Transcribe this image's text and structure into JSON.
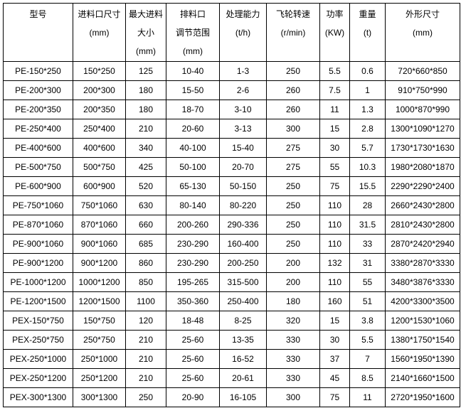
{
  "headers": [
    [
      "型号"
    ],
    [
      "进料口尺寸",
      "(mm)"
    ],
    [
      "最大进料",
      "大小",
      "(mm)"
    ],
    [
      "排料口",
      "调节范围",
      "(mm)"
    ],
    [
      "处理能力",
      "(t/h)"
    ],
    [
      "飞轮转速",
      "(r/min)"
    ],
    [
      "功率",
      "(KW)"
    ],
    [
      "重量",
      "(t)"
    ],
    [
      "外形尺寸",
      "(mm)"
    ]
  ],
  "rows": [
    [
      "PE-150*250",
      "150*250",
      "125",
      "10-40",
      "1-3",
      "250",
      "5.5",
      "0.6",
      "720*660*850"
    ],
    [
      "PE-200*300",
      "200*300",
      "180",
      "15-50",
      "2-6",
      "260",
      "7.5",
      "1",
      "910*750*990"
    ],
    [
      "PE-200*350",
      "200*350",
      "180",
      "18-70",
      "3-10",
      "260",
      "11",
      "1.3",
      "1000*870*990"
    ],
    [
      "PE-250*400",
      "250*400",
      "210",
      "20-60",
      "3-13",
      "300",
      "15",
      "2.8",
      "1300*1090*1270"
    ],
    [
      "PE-400*600",
      "400*600",
      "340",
      "40-100",
      "15-40",
      "275",
      "30",
      "5.7",
      "1730*1730*1630"
    ],
    [
      "PE-500*750",
      "500*750",
      "425",
      "50-100",
      "20-70",
      "275",
      "55",
      "10.3",
      "1980*2080*1870"
    ],
    [
      "PE-600*900",
      "600*900",
      "520",
      "65-130",
      "50-150",
      "250",
      "75",
      "15.5",
      "2290*2290*2400"
    ],
    [
      "PE-750*1060",
      "750*1060",
      "630",
      "80-140",
      "80-220",
      "250",
      "110",
      "28",
      "2660*2430*2800"
    ],
    [
      "PE-870*1060",
      "870*1060",
      "660",
      "200-260",
      "290-336",
      "250",
      "110",
      "31.5",
      "2810*2430*2800"
    ],
    [
      "PE-900*1060",
      "900*1060",
      "685",
      "230-290",
      "160-400",
      "250",
      "110",
      "33",
      "2870*2420*2940"
    ],
    [
      "PE-900*1200",
      "900*1200",
      "860",
      "230-290",
      "200-250",
      "200",
      "132",
      "31",
      "3380*2870*3330"
    ],
    [
      "PE-1000*1200",
      "1000*1200",
      "850",
      "195-265",
      "315-500",
      "200",
      "110",
      "55",
      "3480*3876*3330"
    ],
    [
      "PE-1200*1500",
      "1200*1500",
      "1100",
      "350-360",
      "250-400",
      "180",
      "160",
      "51",
      "4200*3300*3500"
    ],
    [
      "PEX-150*750",
      "150*750",
      "120",
      "18-48",
      "8-25",
      "320",
      "15",
      "3.8",
      "1200*1530*1060"
    ],
    [
      "PEX-250*750",
      "250*750",
      "210",
      "25-60",
      "13-35",
      "330",
      "30",
      "5.5",
      "1380*1750*1540"
    ],
    [
      "PEX-250*1000",
      "250*1000",
      "210",
      "25-60",
      "16-52",
      "330",
      "37",
      "7",
      "1560*1950*1390"
    ],
    [
      "PEX-250*1200",
      "250*1200",
      "210",
      "25-60",
      "20-61",
      "330",
      "45",
      "8.5",
      "2140*1660*1500"
    ],
    [
      "PEX-300*1300",
      "300*1300",
      "250",
      "20-90",
      "16-105",
      "300",
      "75",
      "11",
      "2720*1950*1600"
    ]
  ]
}
